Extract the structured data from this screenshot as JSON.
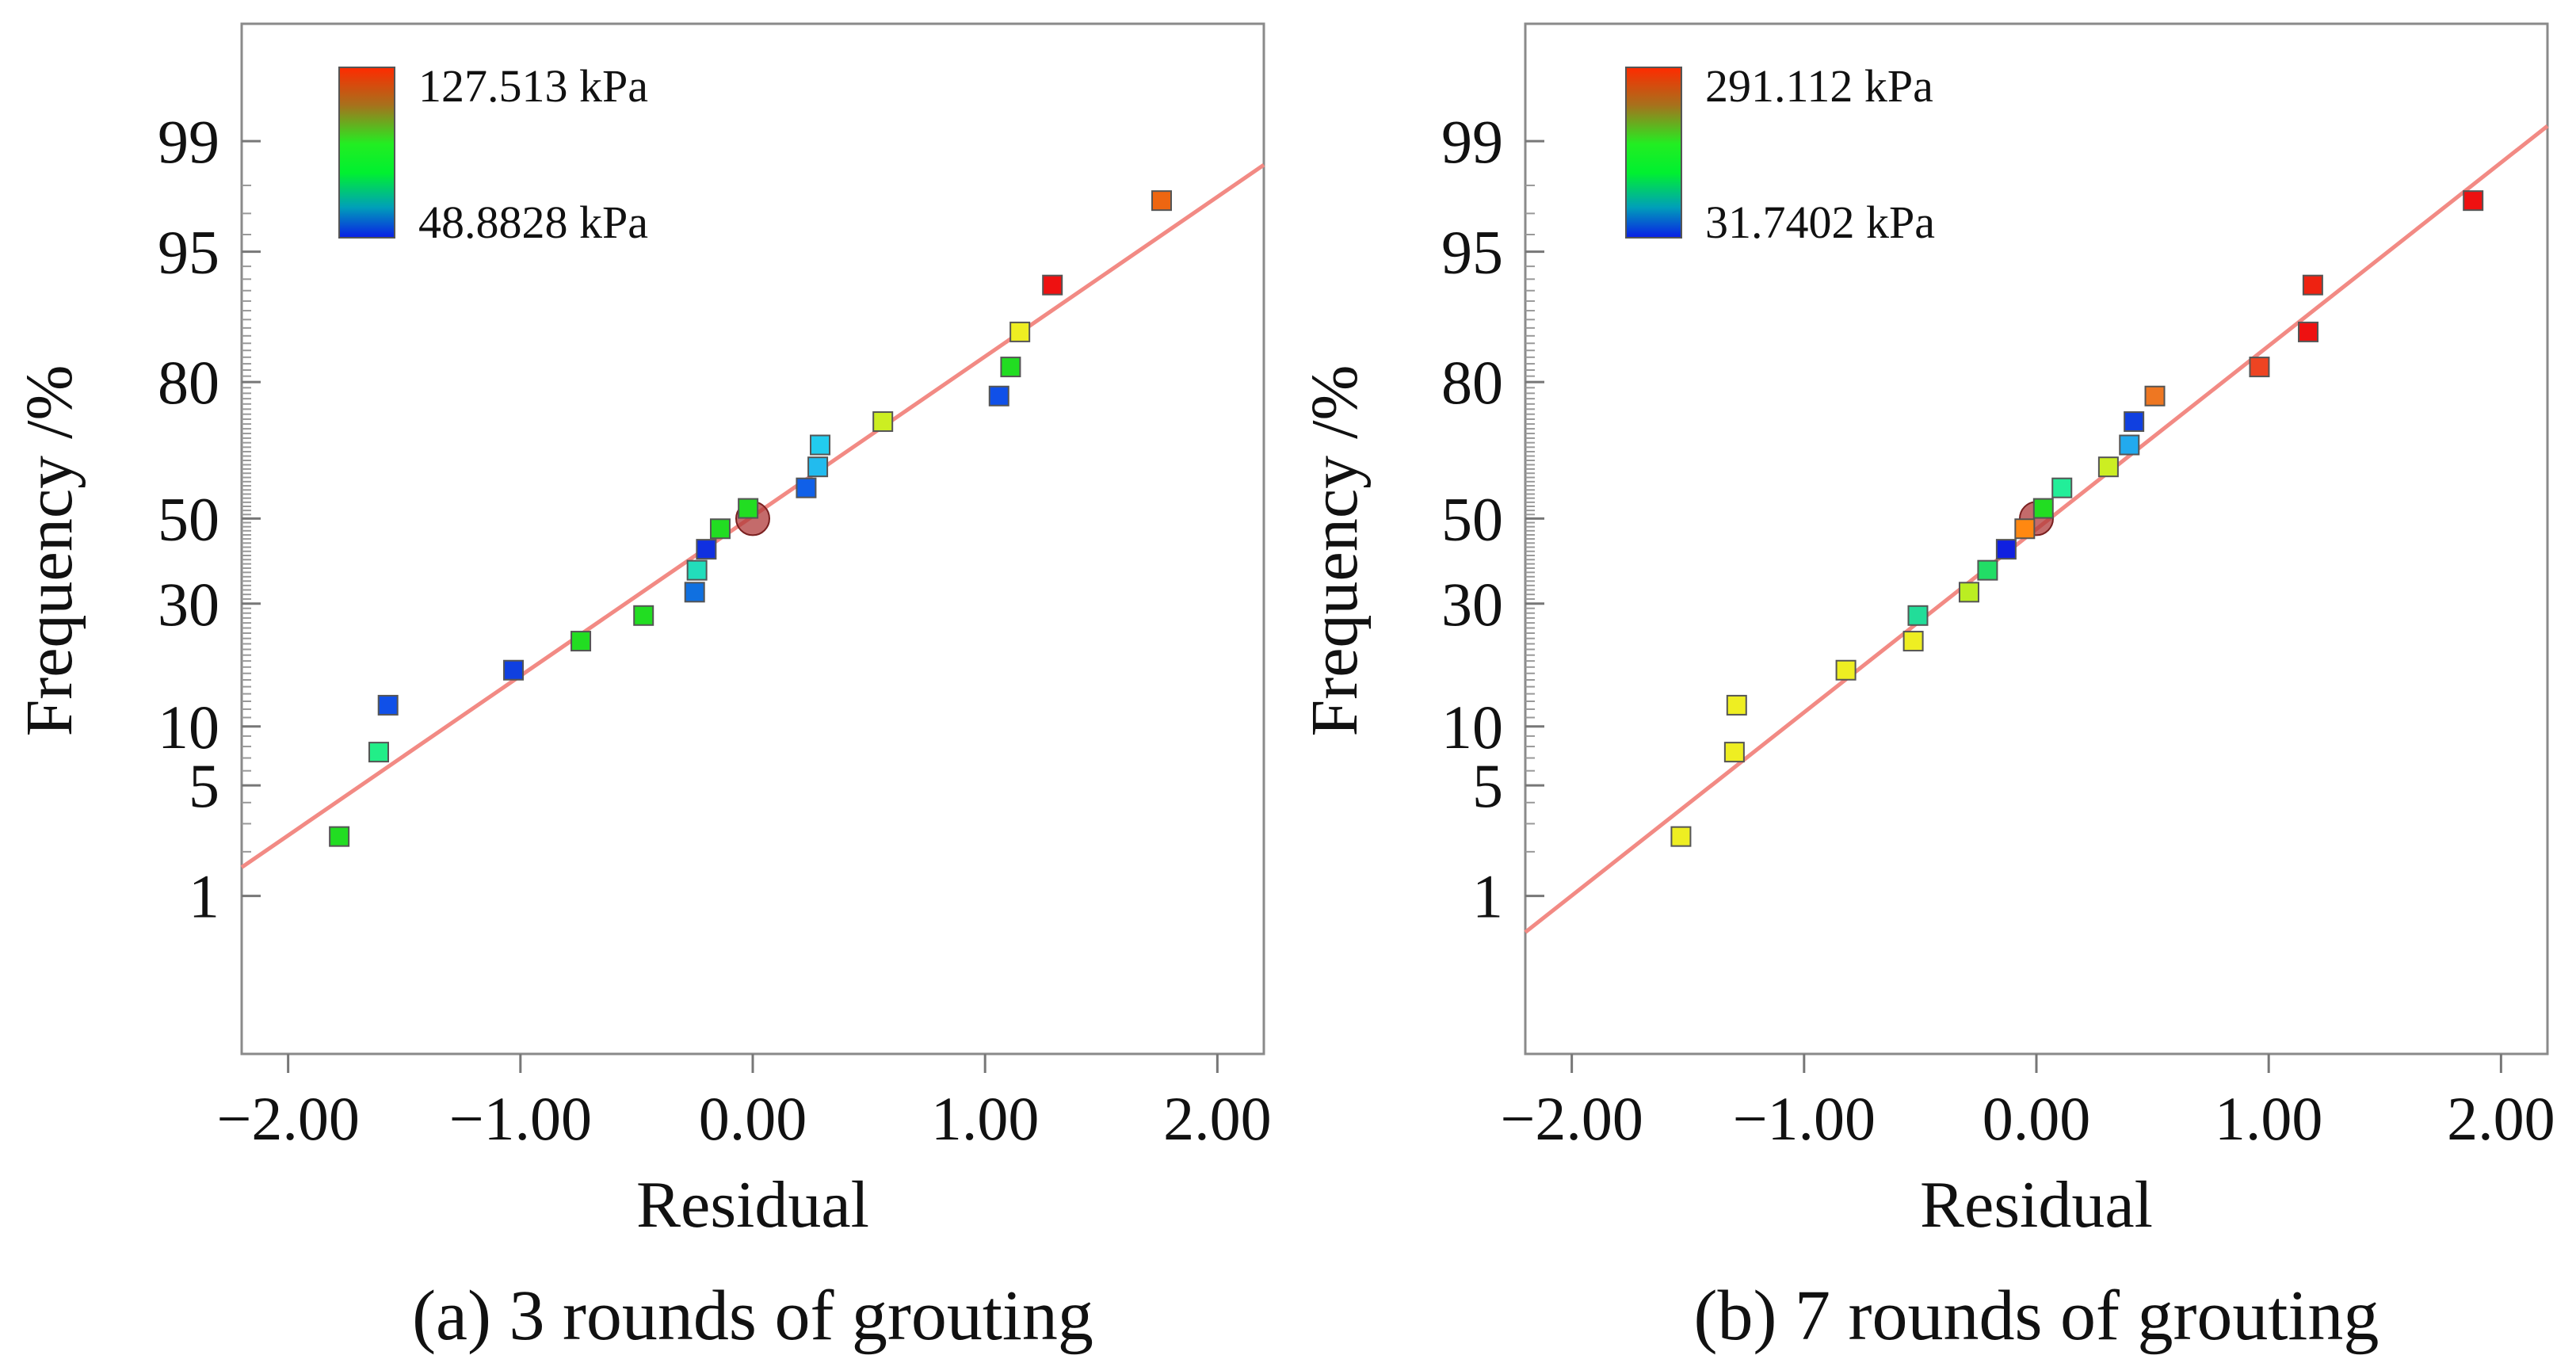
{
  "colors": {
    "fit_line": "#f28a84",
    "frame": "#8a8a8a",
    "center_marker": "#b03a3a",
    "gradient_stops": [
      "#ff2a00",
      "#a8701c",
      "#22ee22",
      "#00f030",
      "#00a0b8",
      "#0a1ee6"
    ]
  },
  "chart_data": [
    {
      "type": "scatter",
      "subtype": "normal-probability-plot",
      "caption": "(a) 3 rounds of grouting",
      "xlabel": "Residual",
      "ylabel": "Frequency /%",
      "xlim": [
        -2.2,
        2.2
      ],
      "xticks": [
        -2.0,
        -1.0,
        0.0,
        1.0,
        2.0
      ],
      "xtick_labels": [
        "−2.00",
        "−1.00",
        "0.00",
        "1.00",
        "2.00"
      ],
      "ylim_z": [
        -3.3,
        3.05
      ],
      "yticks": [
        1,
        5,
        10,
        30,
        50,
        80,
        95,
        99
      ],
      "ytick_labels": [
        "1",
        "5",
        "10",
        "30",
        "50",
        "80",
        "95",
        "99"
      ],
      "legend": {
        "max_label": "127.513 kPa",
        "min_label": "48.8828 kPa",
        "min": 48.8828,
        "max": 127.513
      },
      "fit_line": {
        "x": [
          -2.2,
          2.2
        ],
        "y_z": [
          -2.15,
          2.18
        ]
      },
      "center": {
        "x": 0.0,
        "y": 50
      },
      "points": [
        {
          "x": -1.78,
          "y": 2.5,
          "color": "#22dd22"
        },
        {
          "x": -1.61,
          "y": 7.5,
          "color": "#22ee88"
        },
        {
          "x": -1.57,
          "y": 12.5,
          "color": "#1050e8"
        },
        {
          "x": -1.03,
          "y": 17.5,
          "color": "#1040e0"
        },
        {
          "x": -0.74,
          "y": 22.5,
          "color": "#22dd22"
        },
        {
          "x": -0.47,
          "y": 27.5,
          "color": "#22dd22"
        },
        {
          "x": -0.25,
          "y": 32.5,
          "color": "#1070e0"
        },
        {
          "x": -0.24,
          "y": 37.5,
          "color": "#22ddbb"
        },
        {
          "x": -0.2,
          "y": 42.5,
          "color": "#1030e0"
        },
        {
          "x": -0.14,
          "y": 47.5,
          "color": "#22dd22"
        },
        {
          "x": -0.02,
          "y": 52.5,
          "color": "#22dd22"
        },
        {
          "x": 0.23,
          "y": 57.5,
          "color": "#1060e8"
        },
        {
          "x": 0.28,
          "y": 62.5,
          "color": "#22bbee"
        },
        {
          "x": 0.29,
          "y": 67.5,
          "color": "#22ccee"
        },
        {
          "x": 0.56,
          "y": 72.5,
          "color": "#ccee22"
        },
        {
          "x": 1.06,
          "y": 77.5,
          "color": "#1050e8"
        },
        {
          "x": 1.11,
          "y": 82.5,
          "color": "#22dd22"
        },
        {
          "x": 1.15,
          "y": 87.5,
          "color": "#eeee22"
        },
        {
          "x": 1.29,
          "y": 92.5,
          "color": "#ee1111"
        },
        {
          "x": 1.76,
          "y": 97.5,
          "color": "#ee6611"
        }
      ]
    },
    {
      "type": "scatter",
      "subtype": "normal-probability-plot",
      "caption": "(b) 7 rounds of grouting",
      "xlabel": "Residual",
      "ylabel": "Frequency /%",
      "xlim": [
        -2.2,
        2.2
      ],
      "xticks": [
        -2.0,
        -1.0,
        0.0,
        1.0,
        2.0
      ],
      "xtick_labels": [
        "−2.00",
        "−1.00",
        "0.00",
        "1.00",
        "2.00"
      ],
      "ylim_z": [
        -3.3,
        3.05
      ],
      "yticks": [
        1,
        5,
        10,
        30,
        50,
        80,
        95,
        99
      ],
      "ytick_labels": [
        "1",
        "5",
        "10",
        "30",
        "50",
        "80",
        "95",
        "99"
      ],
      "legend": {
        "max_label": "291.112 kPa",
        "min_label": "31.7402 kPa",
        "min": 31.7402,
        "max": 291.112
      },
      "fit_line": {
        "x": [
          -2.2,
          2.2
        ],
        "y_z": [
          -2.55,
          2.42
        ]
      },
      "center": {
        "x": 0.0,
        "y": 50
      },
      "points": [
        {
          "x": -1.53,
          "y": 2.5,
          "color": "#eeee22"
        },
        {
          "x": -1.3,
          "y": 7.5,
          "color": "#eeee22"
        },
        {
          "x": -1.29,
          "y": 12.5,
          "color": "#eeee22"
        },
        {
          "x": -0.82,
          "y": 17.5,
          "color": "#eeee22"
        },
        {
          "x": -0.53,
          "y": 22.5,
          "color": "#eeee22"
        },
        {
          "x": -0.51,
          "y": 27.5,
          "color": "#22dd99"
        },
        {
          "x": -0.29,
          "y": 32.5,
          "color": "#bbee22"
        },
        {
          "x": -0.21,
          "y": 37.5,
          "color": "#22dd66"
        },
        {
          "x": -0.13,
          "y": 42.5,
          "color": "#1020e0"
        },
        {
          "x": -0.05,
          "y": 47.5,
          "color": "#ff8811"
        },
        {
          "x": 0.03,
          "y": 52.5,
          "color": "#22dd22"
        },
        {
          "x": 0.11,
          "y": 57.5,
          "color": "#22ee99"
        },
        {
          "x": 0.31,
          "y": 62.5,
          "color": "#ccee22"
        },
        {
          "x": 0.4,
          "y": 67.5,
          "color": "#22aaee"
        },
        {
          "x": 0.42,
          "y": 72.5,
          "color": "#1040e0"
        },
        {
          "x": 0.51,
          "y": 77.5,
          "color": "#ee7722"
        },
        {
          "x": 0.96,
          "y": 82.5,
          "color": "#ee4422"
        },
        {
          "x": 1.17,
          "y": 87.5,
          "color": "#ee1111"
        },
        {
          "x": 1.19,
          "y": 92.5,
          "color": "#ee2211"
        },
        {
          "x": 1.88,
          "y": 97.5,
          "color": "#ee1111"
        }
      ]
    }
  ]
}
